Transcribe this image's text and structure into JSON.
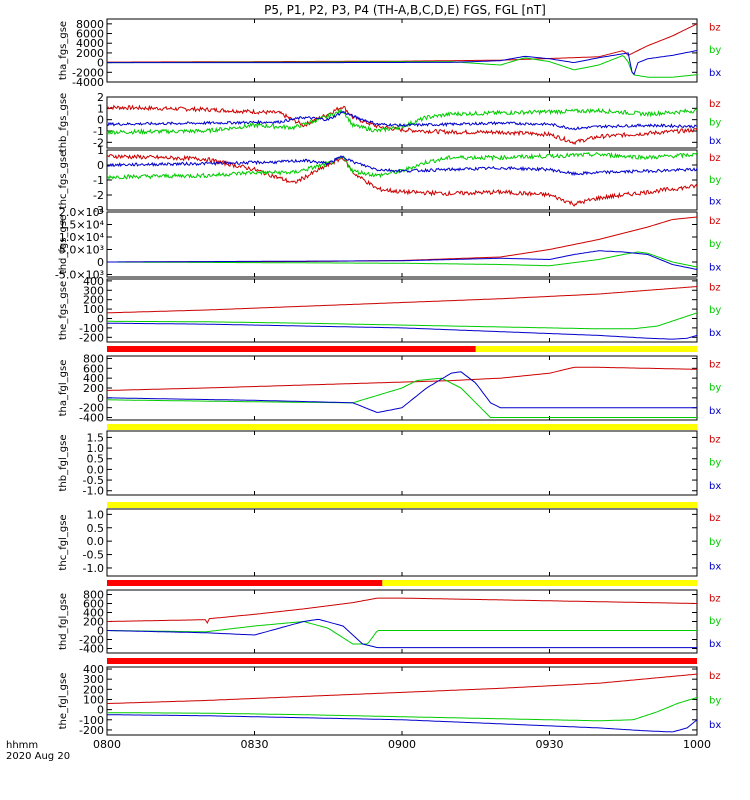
{
  "title": "P5, P1, P2, P3, P4 (TH-A,B,C,D,E) FGS, FGL [nT]",
  "footer": {
    "time_label": "hhmm",
    "date_label": "2020 Aug 20"
  },
  "colors": {
    "bz": "#cc0000",
    "by": "#00cc00",
    "bx": "#0000cc",
    "bar_red": "#ff0000",
    "bar_yellow": "#ffff00"
  },
  "chart_data": {
    "type": "line",
    "x_ticks": [
      "0800",
      "0830",
      "0900",
      "0930",
      "1000"
    ],
    "x_range": [
      0,
      120
    ],
    "panels": [
      {
        "ylabel": "tha_fgs_gse",
        "ylim": [
          -4000,
          9000
        ],
        "yticks": [
          "8000",
          "6000",
          "4000",
          "2000",
          "0",
          "-2000",
          "-4000"
        ],
        "ytick_vals": [
          8000,
          6000,
          4000,
          2000,
          0,
          -2000,
          -4000
        ],
        "series": [
          {
            "name": "bz",
            "x": [
              0,
              30,
              60,
              80,
              100,
              105,
              106,
              110,
              115,
              120
            ],
            "y": [
              100,
              200,
              300,
              500,
              1200,
              2500,
              1500,
              3500,
              5500,
              8000
            ],
            "noise": 0
          },
          {
            "name": "by",
            "x": [
              0,
              40,
              70,
              80,
              85,
              90,
              95,
              100,
              105,
              106,
              107,
              110,
              115,
              120
            ],
            "y": [
              0,
              100,
              200,
              -500,
              1000,
              200,
              -1500,
              -500,
              1500,
              100,
              -2500,
              -3000,
              -3000,
              -2500
            ],
            "noise": 0
          },
          {
            "name": "bx",
            "x": [
              0,
              40,
              70,
              80,
              85,
              90,
              95,
              100,
              106,
              107,
              108,
              110,
              115,
              120
            ],
            "y": [
              0,
              0,
              50,
              400,
              1300,
              800,
              0,
              1000,
              2000,
              -3000,
              0,
              800,
              1500,
              2500
            ],
            "noise": 0
          }
        ]
      },
      {
        "ylabel": "thb_fgs_gse",
        "ylim": [
          -2.5,
          2
        ],
        "yticks": [
          "2",
          "1",
          "0",
          "-1",
          "-2"
        ],
        "ytick_vals": [
          2,
          1,
          0,
          -1,
          -2
        ],
        "series": [
          {
            "name": "bz",
            "x": [
              0,
              20,
              35,
              40,
              45,
              48,
              50,
              55,
              60,
              70,
              80,
              90,
              95,
              100,
              110,
              120
            ],
            "y": [
              1.1,
              0.9,
              0.6,
              -0.5,
              0.5,
              1.2,
              0.2,
              -0.6,
              -0.9,
              -1.1,
              -1.1,
              -1.3,
              -2.0,
              -1.5,
              -1.2,
              -0.9
            ],
            "noise": 0.18
          },
          {
            "name": "by",
            "x": [
              0,
              20,
              30,
              38,
              45,
              48,
              50,
              55,
              60,
              65,
              70,
              80,
              90,
              100,
              110,
              120
            ],
            "y": [
              -1.1,
              -1.0,
              -0.5,
              -0.7,
              0.3,
              0.8,
              -0.5,
              -1.0,
              -0.6,
              0.2,
              0.5,
              0.6,
              0.7,
              0.8,
              0.5,
              0.8
            ],
            "noise": 0.18
          },
          {
            "name": "bx",
            "x": [
              0,
              20,
              35,
              40,
              45,
              48,
              50,
              55,
              60,
              70,
              80,
              90,
              95,
              100,
              110,
              120
            ],
            "y": [
              -0.4,
              -0.3,
              -0.2,
              0.2,
              0.0,
              0.7,
              0.3,
              -0.4,
              -0.5,
              -0.4,
              -0.3,
              -0.4,
              -0.8,
              -0.6,
              -0.5,
              -0.6
            ],
            "noise": 0.12
          }
        ]
      },
      {
        "ylabel": "thc_fgs_gse",
        "ylim": [
          -3,
          1
        ],
        "yticks": [
          "1",
          "0",
          "-1",
          "-2",
          "-3"
        ],
        "ytick_vals": [
          1,
          0,
          -1,
          -2,
          -3
        ],
        "series": [
          {
            "name": "bz",
            "x": [
              0,
              20,
              30,
              38,
              45,
              48,
              50,
              55,
              60,
              70,
              80,
              90,
              95,
              100,
              110,
              120
            ],
            "y": [
              0.6,
              0.4,
              -0.3,
              -1.2,
              0.0,
              0.5,
              -0.5,
              -1.6,
              -1.8,
              -1.9,
              -1.8,
              -2.0,
              -2.6,
              -2.2,
              -1.8,
              -1.4
            ],
            "noise": 0.14
          },
          {
            "name": "by",
            "x": [
              0,
              20,
              30,
              38,
              45,
              48,
              50,
              55,
              60,
              65,
              70,
              80,
              90,
              100,
              110,
              120
            ],
            "y": [
              -0.8,
              -0.7,
              -0.5,
              -0.5,
              0.1,
              0.5,
              -0.4,
              -0.7,
              -0.4,
              0.2,
              0.5,
              0.5,
              0.6,
              0.7,
              0.5,
              0.7
            ],
            "noise": 0.14
          },
          {
            "name": "bx",
            "x": [
              0,
              20,
              35,
              40,
              45,
              48,
              50,
              55,
              60,
              70,
              80,
              90,
              95,
              100,
              110,
              120
            ],
            "y": [
              0.0,
              0.1,
              0.2,
              0.3,
              0.1,
              0.6,
              0.2,
              -0.3,
              -0.4,
              -0.3,
              -0.2,
              -0.3,
              -0.6,
              -0.5,
              -0.4,
              -0.3
            ],
            "noise": 0.1
          }
        ]
      },
      {
        "ylabel": "thd_fgs_gse",
        "ylim": [
          -6000,
          20000
        ],
        "yticks": [
          "2.0×10⁴",
          "1.5×10⁴",
          "1.0×10⁴",
          "5.0×10³",
          "0",
          "-5.0×10³"
        ],
        "ytick_vals": [
          20000,
          15000,
          10000,
          5000,
          0,
          -5000
        ],
        "series": [
          {
            "name": "bz",
            "x": [
              0,
              40,
              60,
              80,
              90,
              100,
              110,
              115,
              120
            ],
            "y": [
              0,
              200,
              600,
              2000,
              5000,
              9000,
              14000,
              17000,
              18000
            ],
            "noise": 0
          },
          {
            "name": "by",
            "x": [
              0,
              60,
              80,
              90,
              100,
              105,
              108,
              110,
              115,
              120
            ],
            "y": [
              0,
              -500,
              -1000,
              -1500,
              1000,
              3000,
              4000,
              3500,
              0,
              -2000
            ],
            "noise": 0
          },
          {
            "name": "bx",
            "x": [
              0,
              60,
              80,
              90,
              95,
              100,
              105,
              110,
              115,
              120
            ],
            "y": [
              0,
              500,
              1500,
              1000,
              3000,
              4500,
              4000,
              3000,
              -1000,
              -3000
            ],
            "noise": 0
          }
        ]
      },
      {
        "ylabel": "the_fgs_gse",
        "ylim": [
          -250,
          420
        ],
        "yticks": [
          "400",
          "300",
          "200",
          "100",
          "0",
          "-100",
          "-200"
        ],
        "ytick_vals": [
          400,
          300,
          200,
          100,
          0,
          -100,
          -200
        ],
        "series": [
          {
            "name": "bz",
            "x": [
              0,
              20,
              40,
              60,
              80,
              100,
              120
            ],
            "y": [
              60,
              90,
              130,
              170,
              210,
              260,
              340
            ],
            "noise": 0
          },
          {
            "name": "by",
            "x": [
              0,
              20,
              40,
              60,
              80,
              100,
              107,
              112,
              116,
              120
            ],
            "y": [
              -30,
              -35,
              -50,
              -70,
              -90,
              -110,
              -110,
              -80,
              -10,
              60
            ],
            "noise": 0
          },
          {
            "name": "bx",
            "x": [
              0,
              20,
              40,
              60,
              80,
              100,
              110,
              115,
              118,
              120
            ],
            "y": [
              -50,
              -60,
              -80,
              -100,
              -140,
              -180,
              -210,
              -220,
              -210,
              -180
            ],
            "noise": 0
          }
        ]
      },
      {
        "ylabel": "tha_fgl_gse",
        "ylim": [
          -450,
          850
        ],
        "yticks": [
          "800",
          "600",
          "400",
          "200",
          "0",
          "-200",
          "-400"
        ],
        "ytick_vals": [
          800,
          600,
          400,
          200,
          0,
          -200,
          -400
        ],
        "series": [
          {
            "name": "bz",
            "x": [
              0,
              20,
              40,
              60,
              70,
              80,
              90,
              95,
              100,
              110,
              120
            ],
            "y": [
              150,
              200,
              260,
              320,
              350,
              400,
              500,
              620,
              620,
              600,
              580
            ],
            "noise": 0
          },
          {
            "name": "by",
            "x": [
              0,
              30,
              50,
              60,
              63,
              68,
              72,
              75,
              78,
              80,
              100,
              120
            ],
            "y": [
              -40,
              -80,
              -100,
              200,
              350,
              400,
              200,
              -100,
              -400,
              -400,
              -400,
              -400
            ],
            "noise": 0
          },
          {
            "name": "bx",
            "x": [
              0,
              30,
              50,
              55,
              60,
              65,
              70,
              72,
              75,
              78,
              80,
              100,
              120
            ],
            "y": [
              0,
              -50,
              -100,
              -300,
              -200,
              200,
              500,
              530,
              300,
              -100,
              -200,
              -200,
              -200
            ],
            "noise": 0
          }
        ]
      },
      {
        "ylabel": "thb_fgl_gse",
        "ylim": [
          -1.2,
          1.8
        ],
        "yticks": [
          "1.5",
          "1.0",
          "0.5",
          "0.0",
          "-0.5",
          "-1.0"
        ],
        "ytick_vals": [
          1.5,
          1.0,
          0.5,
          0.0,
          -0.5,
          -1.0
        ],
        "series": []
      },
      {
        "ylabel": "thc_fgl_gse",
        "ylim": [
          -1.3,
          1.2
        ],
        "yticks": [
          "1.0",
          "0.5",
          "0.0",
          "-0.5",
          "-1.0"
        ],
        "ytick_vals": [
          1.0,
          0.5,
          0.0,
          -0.5,
          -1.0
        ],
        "series": []
      },
      {
        "ylabel": "thd_fgl_gse",
        "ylim": [
          -500,
          900
        ],
        "yticks": [
          "800",
          "600",
          "400",
          "200",
          "0",
          "-200",
          "-400"
        ],
        "ytick_vals": [
          800,
          600,
          400,
          200,
          0,
          -200,
          -400
        ],
        "series": [
          {
            "name": "bz",
            "x": [
              0,
              10,
              20,
              20.3,
              20.6,
              30,
              40,
              50,
              55,
              60,
              120
            ],
            "y": [
              200,
              220,
              240,
              120,
              260,
              360,
              480,
              620,
              720,
              720,
              600
            ],
            "noise": 0
          },
          {
            "name": "by",
            "x": [
              0,
              20,
              30,
              40,
              45,
              50,
              53,
              55,
              120
            ],
            "y": [
              0,
              -30,
              100,
              200,
              50,
              -300,
              -300,
              0,
              0
            ],
            "noise": 0
          },
          {
            "name": "bx",
            "x": [
              0,
              20,
              30,
              40,
              43,
              48,
              52,
              55,
              60,
              120
            ],
            "y": [
              0,
              -50,
              -100,
              200,
              250,
              100,
              -300,
              -380,
              -380,
              -380
            ],
            "noise": 0
          }
        ]
      },
      {
        "ylabel": "the_fgl_gse",
        "ylim": [
          -250,
          420
        ],
        "yticks": [
          "400",
          "300",
          "200",
          "100",
          "0",
          "-100",
          "-200"
        ],
        "ytick_vals": [
          400,
          300,
          200,
          100,
          0,
          -100,
          -200
        ],
        "series": [
          {
            "name": "bz",
            "x": [
              0,
              20,
              40,
              60,
              80,
              100,
              120
            ],
            "y": [
              60,
              90,
              130,
              170,
              210,
              260,
              350
            ],
            "noise": 0
          },
          {
            "name": "by",
            "x": [
              0,
              20,
              40,
              60,
              80,
              100,
              107,
              112,
              116,
              120
            ],
            "y": [
              -30,
              -35,
              -50,
              -70,
              -90,
              -110,
              -100,
              -20,
              60,
              120
            ],
            "noise": 0
          },
          {
            "name": "bx",
            "x": [
              0,
              20,
              40,
              60,
              80,
              100,
              110,
              115,
              118,
              120
            ],
            "y": [
              -50,
              -60,
              -80,
              -100,
              -140,
              -180,
              -210,
              -220,
              -180,
              -100
            ],
            "noise": 0
          }
        ]
      }
    ],
    "status_bars": [
      {
        "after_panel": 4,
        "segments": [
          {
            "from": 0,
            "to": 75,
            "color": "red"
          },
          {
            "from": 75,
            "to": 120,
            "color": "yellow"
          }
        ]
      },
      {
        "after_panel": 5,
        "segments": [
          {
            "from": 0,
            "to": 120,
            "color": "yellow"
          }
        ]
      },
      {
        "after_panel": 6,
        "segments": [
          {
            "from": 0,
            "to": 120,
            "color": "yellow"
          }
        ]
      },
      {
        "after_panel": 7,
        "segments": [
          {
            "from": 0,
            "to": 56,
            "color": "red"
          },
          {
            "from": 56,
            "to": 120,
            "color": "yellow"
          }
        ]
      },
      {
        "after_panel": 8,
        "segments": [
          {
            "from": 0,
            "to": 120,
            "color": "red"
          }
        ]
      }
    ],
    "legend": [
      "bz",
      "by",
      "bx"
    ]
  }
}
